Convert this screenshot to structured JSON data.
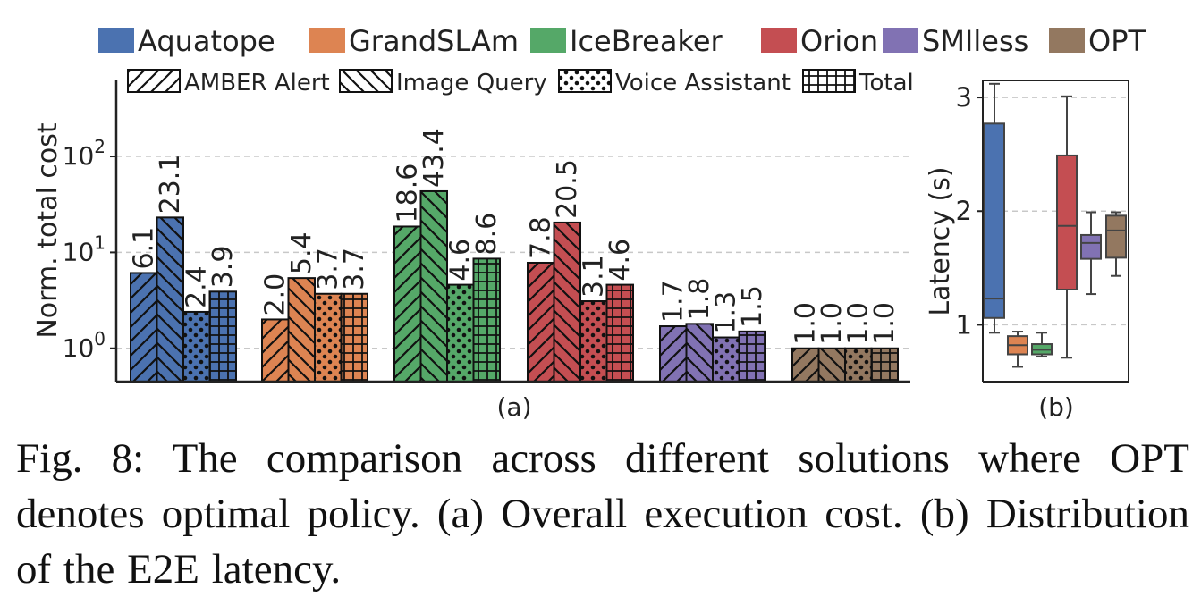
{
  "colors": {
    "Aquatope": "#4b72b0",
    "GrandSLAm": "#dd8452",
    "IceBreaker": "#55a868",
    "Orion": "#c44e52",
    "SMIless": "#8172b3",
    "OPT": "#937860",
    "gridline": "#c8c8c8",
    "axis": "#222222"
  },
  "pattern_icons": [
    "hatch-forward-slash",
    "hatch-back-slash",
    "dots",
    "grid"
  ],
  "caption": "Fig. 8: The comparison across different solutions where OPT denotes optimal policy. (a) Overall execution cost. (b) Distribution of the E2E latency.",
  "chart_data": [
    {
      "type": "bar",
      "panel_label": "(a)",
      "ylabel": "Norm. total cost",
      "yscale": "log",
      "ylim": [
        0.45,
        500
      ],
      "yticks": [
        1,
        10,
        100
      ],
      "ytick_labels": [
        {
          "base": "10",
          "exp": "0"
        },
        {
          "base": "10",
          "exp": "1"
        },
        {
          "base": "10",
          "exp": "2"
        }
      ],
      "grid": true,
      "legend_position": "top",
      "categories": [
        "Aquatope",
        "GrandSLAm",
        "IceBreaker",
        "Orion",
        "SMIless",
        "OPT"
      ],
      "series": [
        {
          "name": "AMBER Alert",
          "pattern": "hatch-forward-slash",
          "values": [
            6.1,
            2.0,
            18.6,
            7.8,
            1.7,
            1.0
          ],
          "labels": [
            "6.1",
            "2.0",
            "18.6",
            "7.8",
            "1.7",
            "1.0"
          ]
        },
        {
          "name": "Image Query",
          "pattern": "hatch-back-slash",
          "values": [
            23.1,
            5.4,
            43.4,
            20.5,
            1.8,
            1.0
          ],
          "labels": [
            "23.1",
            "5.4",
            "43.4",
            "20.5",
            "1.8",
            "1.0"
          ]
        },
        {
          "name": "Voice Assistant",
          "pattern": "dots",
          "values": [
            2.4,
            3.7,
            4.6,
            3.1,
            1.3,
            1.0
          ],
          "labels": [
            "2.4",
            "3.7",
            "4.6",
            "3.1",
            "1.3",
            "1.0"
          ]
        },
        {
          "name": "Total",
          "pattern": "grid",
          "values": [
            3.9,
            3.7,
            8.6,
            4.6,
            1.5,
            1.0
          ],
          "labels": [
            "3.9",
            "3.7",
            "8.6",
            "4.6",
            "1.5",
            "1.0"
          ]
        }
      ]
    },
    {
      "type": "box",
      "panel_label": "(b)",
      "ylabel": "Latency (s)",
      "ylim": [
        0.5,
        3.15
      ],
      "yticks": [
        1,
        2,
        3
      ],
      "ytick_labels": [
        "1",
        "2",
        "3"
      ],
      "grid": true,
      "categories": [
        "Aquatope",
        "GrandSLAm",
        "IceBreaker",
        "Orion",
        "SMIless",
        "OPT"
      ],
      "boxes": [
        {
          "name": "Aquatope",
          "whislo": 0.93,
          "q1": 1.06,
          "med": 1.23,
          "q3": 2.77,
          "whishi": 3.12
        },
        {
          "name": "GrandSLAm",
          "whislo": 0.63,
          "q1": 0.74,
          "med": 0.82,
          "q3": 0.9,
          "whishi": 0.94
        },
        {
          "name": "IceBreaker",
          "whislo": 0.72,
          "q1": 0.74,
          "med": 0.78,
          "q3": 0.83,
          "whishi": 0.93
        },
        {
          "name": "Orion",
          "whislo": 0.71,
          "q1": 1.31,
          "med": 1.87,
          "q3": 2.49,
          "whishi": 3.01
        },
        {
          "name": "SMIless",
          "whislo": 1.27,
          "q1": 1.58,
          "med": 1.72,
          "q3": 1.79,
          "whishi": 1.99
        },
        {
          "name": "OPT",
          "whislo": 1.43,
          "q1": 1.59,
          "med": 1.83,
          "q3": 1.96,
          "whishi": 1.99
        }
      ]
    }
  ]
}
